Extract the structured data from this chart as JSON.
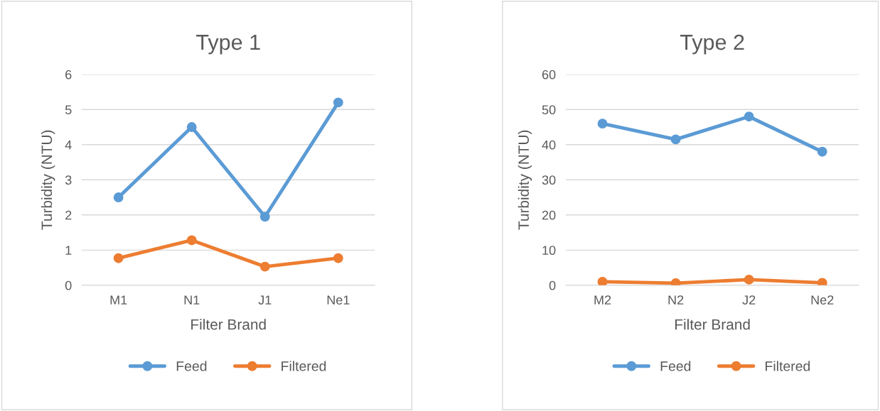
{
  "chart_data": [
    {
      "type": "line",
      "title": "Type 1",
      "xlabel": "Filter Brand",
      "ylabel": "Turbidity (NTU)",
      "categories": [
        "M1",
        "N1",
        "J1",
        "Ne1"
      ],
      "series": [
        {
          "name": "Feed",
          "color": "#5b9bd5",
          "values": [
            2.5,
            4.5,
            1.95,
            5.2
          ]
        },
        {
          "name": "Filtered",
          "color": "#ed7d31",
          "values": [
            0.77,
            1.28,
            0.53,
            0.77
          ]
        }
      ],
      "ylim": [
        0,
        6
      ],
      "yticks": [
        0,
        1,
        2,
        3,
        4,
        5,
        6
      ],
      "grid": "y",
      "legend": "bottom",
      "marker": "circle",
      "line_style": "solid"
    },
    {
      "type": "line",
      "title": "Type 2",
      "xlabel": "Filter Brand",
      "ylabel": "Turbidity (NTU)",
      "categories": [
        "M2",
        "N2",
        "J2",
        "Ne2"
      ],
      "series": [
        {
          "name": "Feed",
          "color": "#5b9bd5",
          "values": [
            46,
            41.5,
            48,
            38
          ]
        },
        {
          "name": "Filtered",
          "color": "#ed7d31",
          "values": [
            1.0,
            0.6,
            1.6,
            0.7
          ]
        }
      ],
      "ylim": [
        0,
        60
      ],
      "yticks": [
        0,
        10,
        20,
        30,
        40,
        50,
        60
      ],
      "grid": "y",
      "legend": "bottom",
      "marker": "circle",
      "line_style": "solid"
    }
  ]
}
